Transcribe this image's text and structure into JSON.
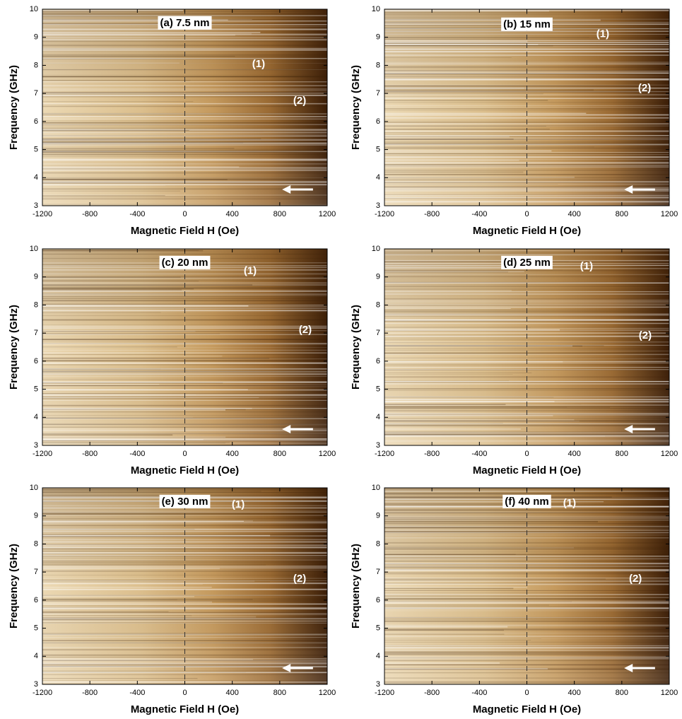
{
  "chart_data": [
    {
      "type": "heatmap",
      "title": "(a) 7.5 nm",
      "xlabel": "Magnetic Field H (Oe)",
      "ylabel": "Frequency (GHz)",
      "xlim": [
        -1200,
        1200
      ],
      "ylim": [
        3,
        10
      ],
      "xticks": [
        -1200,
        -800,
        -400,
        0,
        400,
        800,
        1200
      ],
      "yticks": [
        3,
        4,
        5,
        6,
        7,
        8,
        9,
        10
      ],
      "vline": 0,
      "annotations": [
        "(1)",
        "(2)"
      ]
    },
    {
      "type": "heatmap",
      "title": "(b) 15 nm",
      "xlabel": "Magnetic Field H (Oe)",
      "ylabel": "Frequency (GHz)",
      "xlim": [
        -1200,
        1200
      ],
      "ylim": [
        3,
        10
      ],
      "xticks": [
        -1200,
        -800,
        -400,
        0,
        400,
        800,
        1200
      ],
      "yticks": [
        3,
        4,
        5,
        6,
        7,
        8,
        9,
        10
      ],
      "vline": 0,
      "annotations": [
        "(1)",
        "(2)"
      ]
    },
    {
      "type": "heatmap",
      "title": "(c) 20 nm",
      "xlabel": "Magnetic Field H (Oe)",
      "ylabel": "Frequency (GHz)",
      "xlim": [
        -1200,
        1200
      ],
      "ylim": [
        3,
        10
      ],
      "xticks": [
        -1200,
        -800,
        -400,
        0,
        400,
        800,
        1200
      ],
      "yticks": [
        3,
        4,
        5,
        6,
        7,
        8,
        9,
        10
      ],
      "vline": 0,
      "annotations": [
        "(1)",
        "(2)"
      ]
    },
    {
      "type": "heatmap",
      "title": "(d) 25 nm",
      "xlabel": "Magnetic Field H (Oe)",
      "ylabel": "Frequency (GHz)",
      "xlim": [
        -1200,
        1200
      ],
      "ylim": [
        3,
        10
      ],
      "xticks": [
        -1200,
        -800,
        -400,
        0,
        400,
        800,
        1200
      ],
      "yticks": [
        3,
        4,
        5,
        6,
        7,
        8,
        9,
        10
      ],
      "vline": 0,
      "annotations": [
        "(1)",
        "(2)"
      ]
    },
    {
      "type": "heatmap",
      "title": "(e) 30 nm",
      "xlabel": "Magnetic Field H (Oe)",
      "ylabel": "Frequency (GHz)",
      "xlim": [
        -1200,
        1200
      ],
      "ylim": [
        3,
        10
      ],
      "xticks": [
        -1200,
        -800,
        -400,
        0,
        400,
        800,
        1200
      ],
      "yticks": [
        3,
        4,
        5,
        6,
        7,
        8,
        9,
        10
      ],
      "vline": 0,
      "annotations": [
        "(1)",
        "(2)"
      ]
    },
    {
      "type": "heatmap",
      "title": "(f) 40 nm",
      "xlabel": "Magnetic Field H (Oe)",
      "ylabel": "Frequency (GHz)",
      "xlim": [
        -1200,
        1200
      ],
      "ylim": [
        3,
        10
      ],
      "xticks": [
        -1200,
        -800,
        -400,
        0,
        400,
        800,
        1200
      ],
      "yticks": [
        3,
        4,
        5,
        6,
        7,
        8,
        9,
        10
      ],
      "vline": 0,
      "annotations": [
        "(1)",
        "(2)"
      ]
    }
  ]
}
